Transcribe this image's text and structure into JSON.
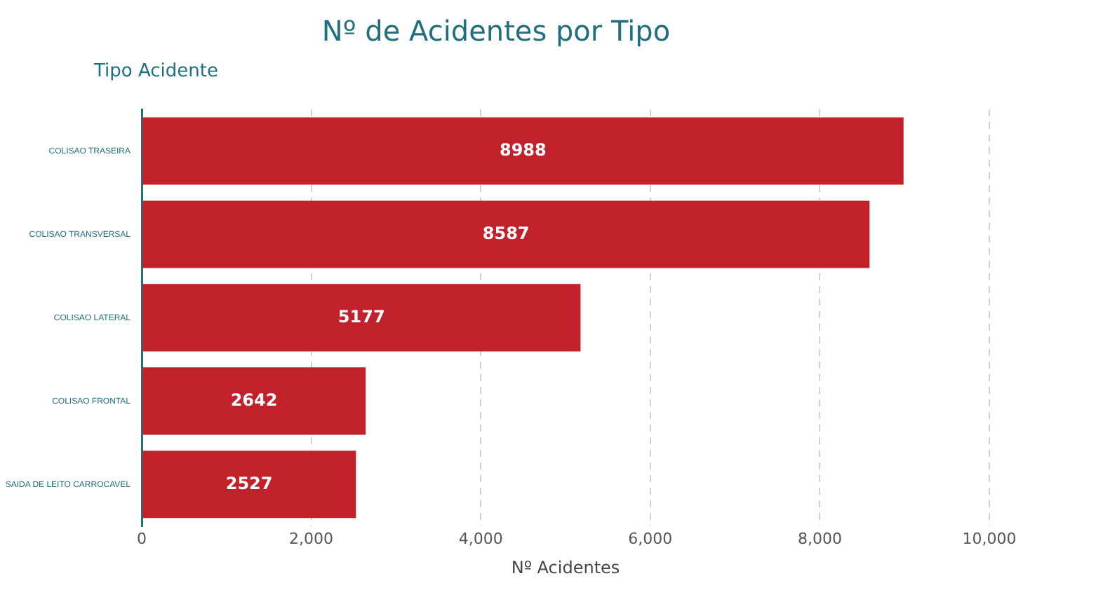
{
  "chart_data": {
    "type": "bar",
    "orientation": "horizontal",
    "title": "Nº de Acidentes por Tipo",
    "ylabel": "Tipo Acidente",
    "xlabel": "Nº Acidentes",
    "categories": [
      "COLISAO TRASEIRA",
      "COLISAO TRANSVERSAL",
      "COLISAO LATERAL",
      "COLISAO FRONTAL",
      "SAIDA DE LEITO CARROCAVEL"
    ],
    "values": [
      8988,
      8587,
      5177,
      2642,
      2527
    ],
    "color": "#c0212b",
    "xlim": [
      0,
      10000
    ],
    "xticks": [
      {
        "value": 0,
        "label": "0"
      },
      {
        "value": 2000,
        "label": "2,000"
      },
      {
        "value": 4000,
        "label": "4,000"
      },
      {
        "value": 6000,
        "label": "6,000"
      },
      {
        "value": 8000,
        "label": "8,000"
      },
      {
        "value": 10000,
        "label": "10,000"
      }
    ],
    "grid": "x",
    "data_labels": true,
    "legend": false
  }
}
